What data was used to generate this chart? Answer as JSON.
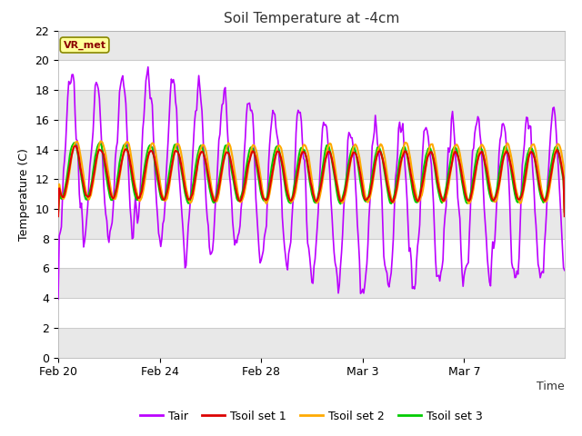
{
  "title": "Soil Temperature at -4cm",
  "xlabel": "Time",
  "ylabel": "Temperature (C)",
  "ylim": [
    0,
    22
  ],
  "yticks": [
    0,
    2,
    4,
    6,
    8,
    10,
    12,
    14,
    16,
    18,
    20,
    22
  ],
  "x_tick_labels": [
    "Feb 20",
    "Feb 24",
    "Feb 28",
    "Mar 3",
    "Mar 7"
  ],
  "x_tick_positions": [
    0,
    96,
    192,
    288,
    384
  ],
  "n_points": 480,
  "plot_bg": "#ffffff",
  "band_color": "#e8e8e8",
  "fig_bg": "#ffffff",
  "annotation_text": "VR_met",
  "annotation_bg": "#ffff99",
  "annotation_border": "#888800",
  "colors": {
    "Tair": "#bb00ff",
    "Tsoil1": "#dd0000",
    "Tsoil2": "#ffaa00",
    "Tsoil3": "#00cc00"
  },
  "legend_labels": [
    "Tair",
    "Tsoil set 1",
    "Tsoil set 2",
    "Tsoil set 3"
  ]
}
